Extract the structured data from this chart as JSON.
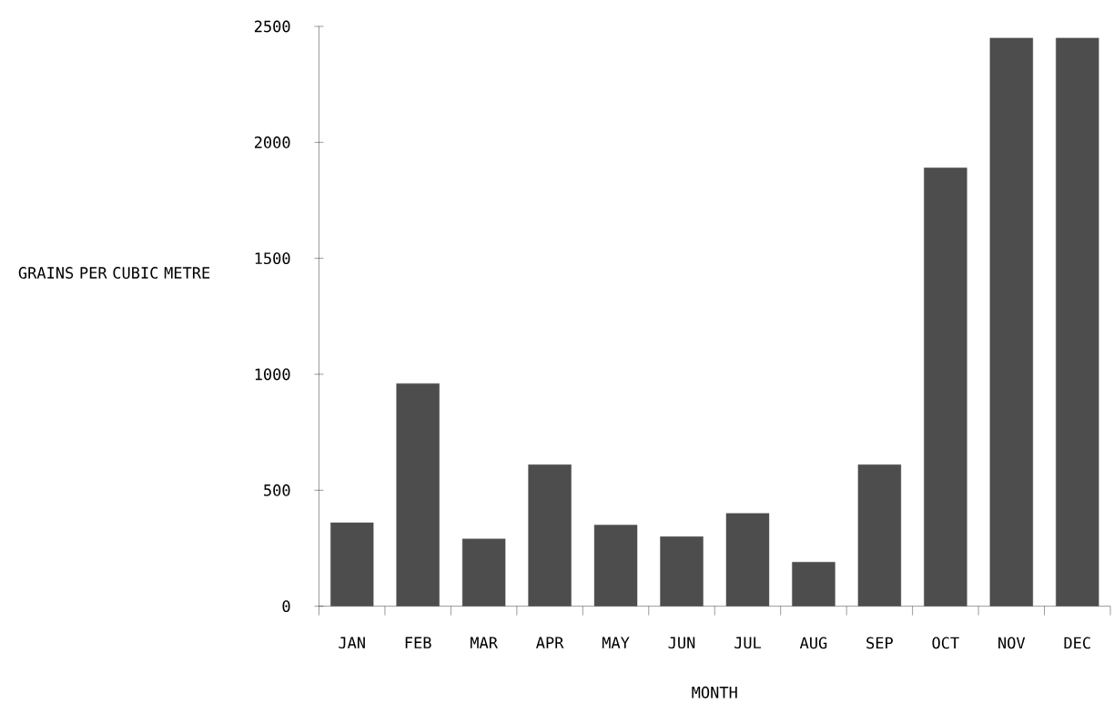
{
  "chart_data": {
    "type": "bar",
    "xlabel": "MONTH",
    "ylabel": "GRAINS PER CUBIC METRE",
    "categories": [
      "JAN",
      "FEB",
      "MAR",
      "APR",
      "MAY",
      "JUN",
      "JUL",
      "AUG",
      "SEP",
      "OCT",
      "NOV",
      "DEC"
    ],
    "values": [
      360,
      960,
      290,
      610,
      350,
      300,
      400,
      190,
      610,
      1890,
      2450,
      2450
    ],
    "color": "#4d4d4d",
    "ylim": [
      0,
      2500
    ],
    "yticks": [
      0,
      500,
      1000,
      1500,
      2000,
      2500
    ],
    "grid": false
  }
}
